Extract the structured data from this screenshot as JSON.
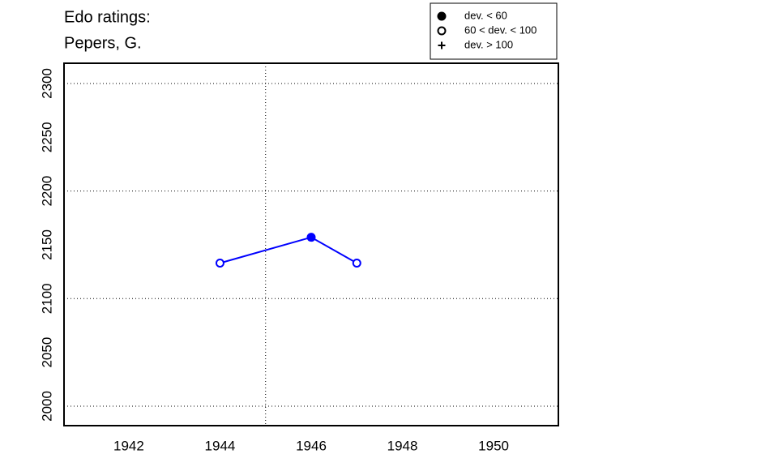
{
  "chart_data": {
    "type": "line",
    "title": [
      "Edo ratings:",
      "Pepers, G."
    ],
    "x": [
      1944,
      1946,
      1947
    ],
    "series": [
      {
        "color": "#0000ff",
        "values": [
          2133,
          2157,
          2133
        ],
        "markers": [
          "open",
          "filled",
          "open"
        ]
      }
    ],
    "xlim": [
      1940.58,
      1951.42
    ],
    "ylim": [
      1981.9,
      2318.8
    ],
    "xticks": [
      1942,
      1944,
      1946,
      1948,
      1950
    ],
    "yticks": [
      2000,
      2050,
      2100,
      2150,
      2200,
      2250,
      2300
    ],
    "xgrid": [
      1945
    ],
    "ygrid": [
      2000,
      2100,
      2200,
      2300
    ],
    "legend": [
      {
        "label": "dev. < 60",
        "marker": "filled"
      },
      {
        "label": "60 < dev. < 100",
        "marker": "open"
      },
      {
        "label": "dev. > 100",
        "marker": "plus"
      }
    ]
  }
}
